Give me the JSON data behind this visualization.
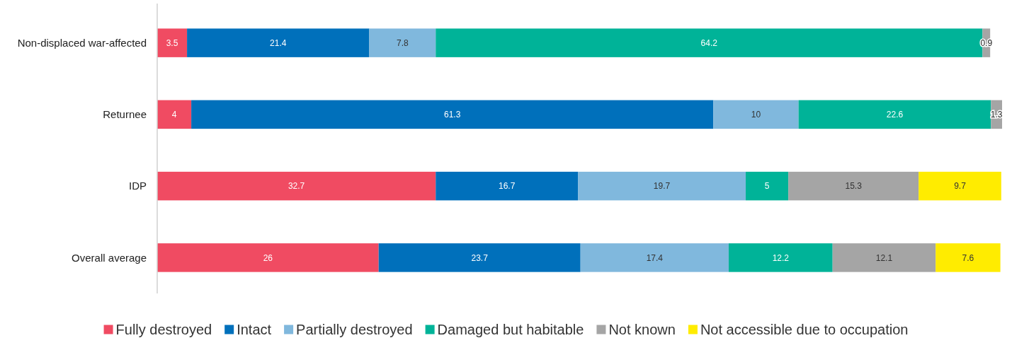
{
  "chart_data": {
    "type": "bar",
    "orientation": "horizontal",
    "stacked": true,
    "data_labels": true,
    "legend": "bottom",
    "grid": false,
    "categories": [
      "Non-displaced war-affected",
      "Returnee",
      "IDP",
      "Overall average"
    ],
    "series": [
      {
        "name": "Fully destroyed",
        "color": "#f04b62",
        "values": [
          3.5,
          4,
          32.7,
          26
        ]
      },
      {
        "name": "Intact",
        "color": "#0070bb",
        "values": [
          21.4,
          61.3,
          16.7,
          23.7
        ]
      },
      {
        "name": "Partially destroyed",
        "color": "#80b8dd",
        "values": [
          7.8,
          10,
          19.7,
          17.4
        ]
      },
      {
        "name": "Damaged but habitable",
        "color": "#00b398",
        "values": [
          64.2,
          22.6,
          5,
          12.2
        ]
      },
      {
        "name": "Not known",
        "color": "#a5a5a5",
        "values": [
          0.9,
          1.3,
          15.3,
          12.1
        ]
      },
      {
        "name": "Not accessible due to occupation",
        "color": "#ffec00",
        "values": [
          null,
          null,
          9.7,
          7.6
        ]
      }
    ]
  }
}
